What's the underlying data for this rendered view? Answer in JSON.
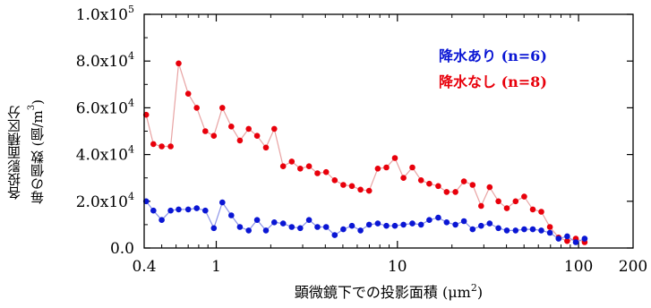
{
  "chart_data": {
    "type": "scatter",
    "x_scale": "log",
    "xlim": [
      0.4,
      200
    ],
    "ylim": [
      0,
      100000
    ],
    "xlabel_main": "顕微鏡下での投影面積 (μm",
    "xlabel_sup": "2",
    "xlabel_close": ")",
    "ylabel_line1": "各投影面積区分",
    "ylabel_line2": "毎の個数 (個/m",
    "ylabel_sup": "3",
    "ylabel_close": ")",
    "x_ticks": [
      {
        "value": 0.4,
        "label": "0.4"
      },
      {
        "value": 1,
        "label": "1"
      },
      {
        "value": 10,
        "label": "10"
      },
      {
        "value": 100,
        "label": "100"
      },
      {
        "value": 200,
        "label": "200"
      }
    ],
    "y_ticks": [
      {
        "value": 0,
        "base": "0.0",
        "exp": ""
      },
      {
        "value": 20000,
        "base": "2.0x10",
        "exp": "4"
      },
      {
        "value": 40000,
        "base": "4.0x10",
        "exp": "4"
      },
      {
        "value": 60000,
        "base": "6.0x10",
        "exp": "4"
      },
      {
        "value": 80000,
        "base": "8.0x10",
        "exp": "4"
      },
      {
        "value": 100000,
        "base": "1.0x10",
        "exp": "5"
      }
    ],
    "legend_placement": "top-right",
    "series": [
      {
        "name": "降水なし (n=8)",
        "color": "#e8000b",
        "line_color": "#e8a3a3",
        "x": [
          0.41,
          0.45,
          0.5,
          0.56,
          0.62,
          0.7,
          0.78,
          0.87,
          0.97,
          1.08,
          1.21,
          1.35,
          1.51,
          1.68,
          1.88,
          2.09,
          2.34,
          2.61,
          2.91,
          3.25,
          3.62,
          4.04,
          4.51,
          5.03,
          5.61,
          6.26,
          6.98,
          7.79,
          8.69,
          9.69,
          10.8,
          12.1,
          13.5,
          15.0,
          16.8,
          18.7,
          20.9,
          23.3,
          26.0,
          29.0,
          32.3,
          36.1,
          40.2,
          44.9,
          50.1,
          55.9,
          62.3,
          69.5,
          77.6,
          86.5,
          96.5,
          108
        ],
        "y": [
          57000,
          44500,
          43500,
          43500,
          79000,
          66000,
          60000,
          50000,
          48000,
          60000,
          52000,
          46000,
          51000,
          48000,
          43000,
          51000,
          35000,
          37000,
          34000,
          35000,
          32000,
          32500,
          29000,
          27000,
          26500,
          25000,
          24500,
          34000,
          34500,
          38500,
          30000,
          34500,
          29000,
          27500,
          26500,
          24000,
          24000,
          28500,
          27000,
          18000,
          26000,
          20000,
          17000,
          20000,
          22000,
          16500,
          15500,
          9000,
          4500,
          3000,
          4000,
          2500
        ]
      },
      {
        "name": "降水あり (n=6)",
        "color": "#0a16d4",
        "line_color": "#8b93e8",
        "x": [
          0.41,
          0.45,
          0.5,
          0.56,
          0.62,
          0.7,
          0.78,
          0.87,
          0.97,
          1.08,
          1.21,
          1.35,
          1.51,
          1.68,
          1.88,
          2.09,
          2.34,
          2.61,
          2.91,
          3.25,
          3.62,
          4.04,
          4.51,
          5.03,
          5.61,
          6.26,
          6.98,
          7.79,
          8.69,
          9.69,
          10.8,
          12.1,
          13.5,
          15.0,
          16.8,
          18.7,
          20.9,
          23.3,
          26.0,
          29.0,
          32.3,
          36.1,
          40.2,
          44.9,
          50.1,
          55.9,
          62.3,
          69.5,
          77.6,
          86.5,
          96.5,
          108
        ],
        "y": [
          20000,
          16000,
          12000,
          16000,
          16500,
          16500,
          17000,
          16000,
          8500,
          19500,
          14000,
          9000,
          7500,
          12000,
          7500,
          11000,
          10500,
          9000,
          8500,
          12000,
          9000,
          9000,
          5500,
          8000,
          9500,
          7500,
          10000,
          10500,
          9500,
          9500,
          10000,
          10500,
          10000,
          12000,
          13000,
          11000,
          10000,
          11500,
          8000,
          9500,
          10500,
          8500,
          7500,
          7500,
          8000,
          8000,
          7500,
          6500,
          4000,
          5000,
          2500,
          4000
        ]
      }
    ]
  }
}
